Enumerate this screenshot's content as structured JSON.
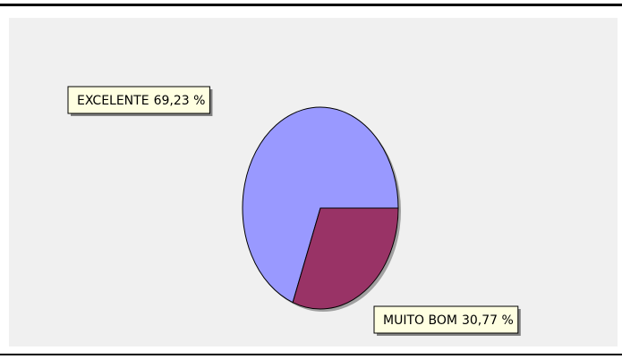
{
  "chart_data": {
    "type": "pie",
    "categories": [
      "EXCELENTE",
      "MUITO BOM"
    ],
    "values": [
      69.23,
      30.77
    ],
    "value_labels": [
      "69,23 %",
      "30,77 %"
    ],
    "colors": [
      "#9999ff",
      "#993366"
    ]
  }
}
